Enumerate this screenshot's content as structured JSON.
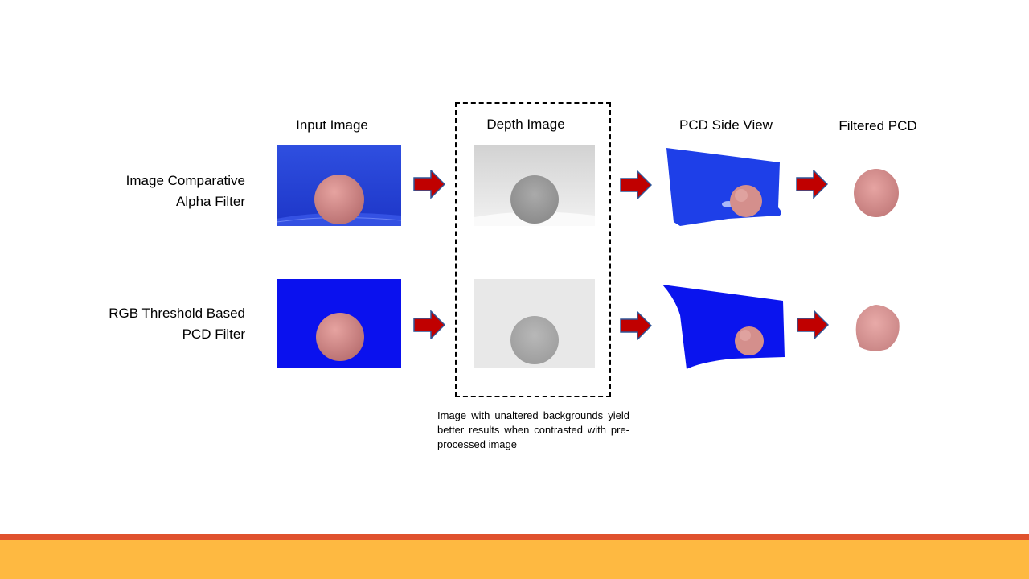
{
  "columns": {
    "input": "Input Image",
    "depth": "Depth Image",
    "pcd_side": "PCD Side View",
    "filtered": "Filtered PCD"
  },
  "rows": [
    {
      "label_line1": "Image Comparative",
      "label_line2": "Alpha Filter"
    },
    {
      "label_line1": "RGB Threshold  Based",
      "label_line2": "PCD Filter"
    }
  ],
  "note": "Image with unaltered backgrounds yield better results when contrasted with pre-processed image",
  "colors": {
    "background_blue": "#2440e6",
    "fruit": "#d98a8a",
    "arrow_fill": "#c00000",
    "arrow_stroke": "#2f5597",
    "footer_line": "#e0522d",
    "footer_bar": "#feb941"
  }
}
